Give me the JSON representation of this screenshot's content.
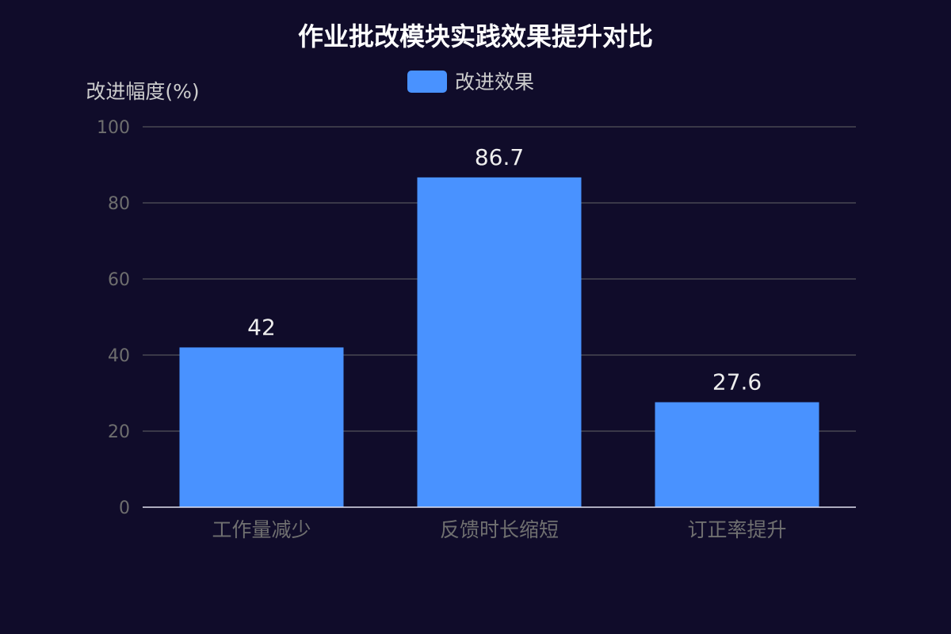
{
  "colors": {
    "background": "#100c2a",
    "bar": "#4992ff",
    "grid": "#484753",
    "axis_line": "#e0e0ef"
  },
  "chart_data": {
    "type": "bar",
    "title": "作业批改模块实践效果提升对比",
    "ylabel": "改进幅度(%)",
    "xlabel": "",
    "categories": [
      "工作量减少",
      "反馈时长缩短",
      "订正率提升"
    ],
    "series": [
      {
        "name": "改进效果",
        "values": [
          42,
          86.7,
          27.6
        ]
      }
    ],
    "ylim": [
      0,
      100
    ],
    "yticks": [
      0,
      20,
      40,
      60,
      80,
      100
    ],
    "grid": true,
    "legend_position": "top-center",
    "data_labels": true
  }
}
